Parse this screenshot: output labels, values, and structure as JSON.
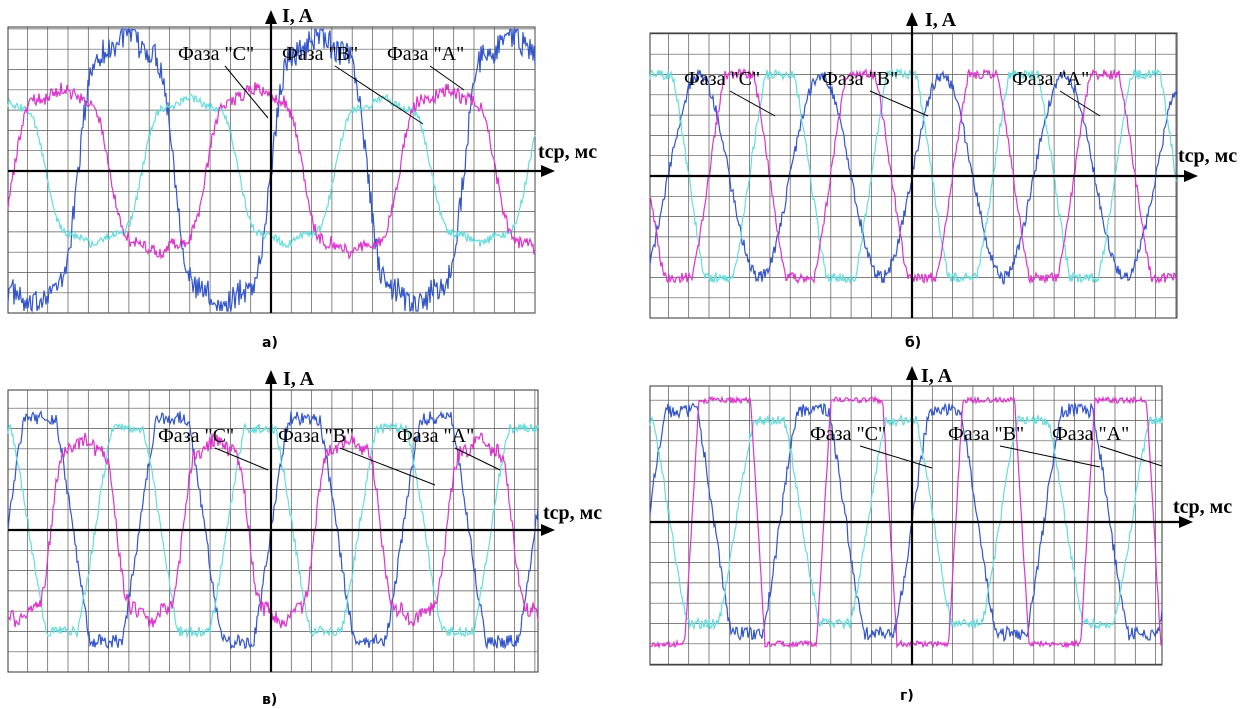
{
  "chart_data": [
    {
      "type": "line",
      "caption": "а)",
      "ylabel": "I, A",
      "xlabel": "tср, мс",
      "grid": true,
      "period_cells": 9.5,
      "annotations": [
        "Фаза \"C\"",
        "Фаза \"B\"",
        "Фаза \"A\""
      ],
      "series": [
        {
          "color": "#3355cc",
          "amplitude": 7.5,
          "phase": 0.0,
          "shape": "distorted-sine",
          "noise": 0.35
        },
        {
          "color": "#66dddd",
          "amplitude": 4.0,
          "phase": 4.2,
          "shape": "distorted-sine",
          "noise": 0.2
        },
        {
          "color": "#dd33cc",
          "amplitude": 4.5,
          "phase": 2.1,
          "shape": "distorted-sine",
          "noise": 0.3
        }
      ]
    },
    {
      "type": "line",
      "caption": "б)",
      "ylabel": "I, A",
      "xlabel": "tср, мс",
      "grid": true,
      "period_cells": 6.0,
      "annotations": [
        "Фаза \"C\"",
        "Фаза \"B\"",
        "Фаза \"A\""
      ],
      "series": [
        {
          "color": "#3355cc",
          "amplitude": 5.0,
          "phase": 0.0,
          "shape": "sine",
          "noise": 0.25
        },
        {
          "color": "#66dddd",
          "amplitude": 5.0,
          "phase": 2.1,
          "shape": "clipped",
          "noise": 0.2
        },
        {
          "color": "#dd33cc",
          "amplitude": 5.0,
          "phase": 4.2,
          "shape": "clipped",
          "noise": 0.2
        }
      ]
    },
    {
      "type": "line",
      "caption": "в)",
      "ylabel": "I, A",
      "xlabel": "tср, мс",
      "grid": true,
      "period_cells": 6.5,
      "annotations": [
        "Фаза \"C\"",
        "Фаза \"B\"",
        "Фаза \"A\""
      ],
      "series": [
        {
          "color": "#3355cc",
          "amplitude": 5.5,
          "phase": 0.0,
          "shape": "clipped",
          "noise": 0.25
        },
        {
          "color": "#66dddd",
          "amplitude": 5.0,
          "phase": 2.1,
          "shape": "clipped",
          "noise": 0.2
        },
        {
          "color": "#dd33cc",
          "amplitude": 5.0,
          "phase": 4.2,
          "shape": "distorted-sine",
          "noise": 0.3
        }
      ]
    },
    {
      "type": "line",
      "caption": "г)",
      "ylabel": "I, A",
      "xlabel": "tср, мс",
      "grid": true,
      "period_cells": 6.5,
      "annotations": [
        "Фаза \"C\"",
        "Фаза \"B\"",
        "Фаза \"A\""
      ],
      "series": [
        {
          "color": "#3355cc",
          "amplitude": 5.5,
          "phase": 0.0,
          "shape": "clipped",
          "noise": 0.25
        },
        {
          "color": "#66dddd",
          "amplitude": 5.0,
          "phase": 2.1,
          "shape": "clipped",
          "noise": 0.2
        },
        {
          "color": "#dd33cc",
          "amplitude": 6.0,
          "phase": 4.2,
          "shape": "square",
          "noise": 0.1
        }
      ]
    }
  ]
}
